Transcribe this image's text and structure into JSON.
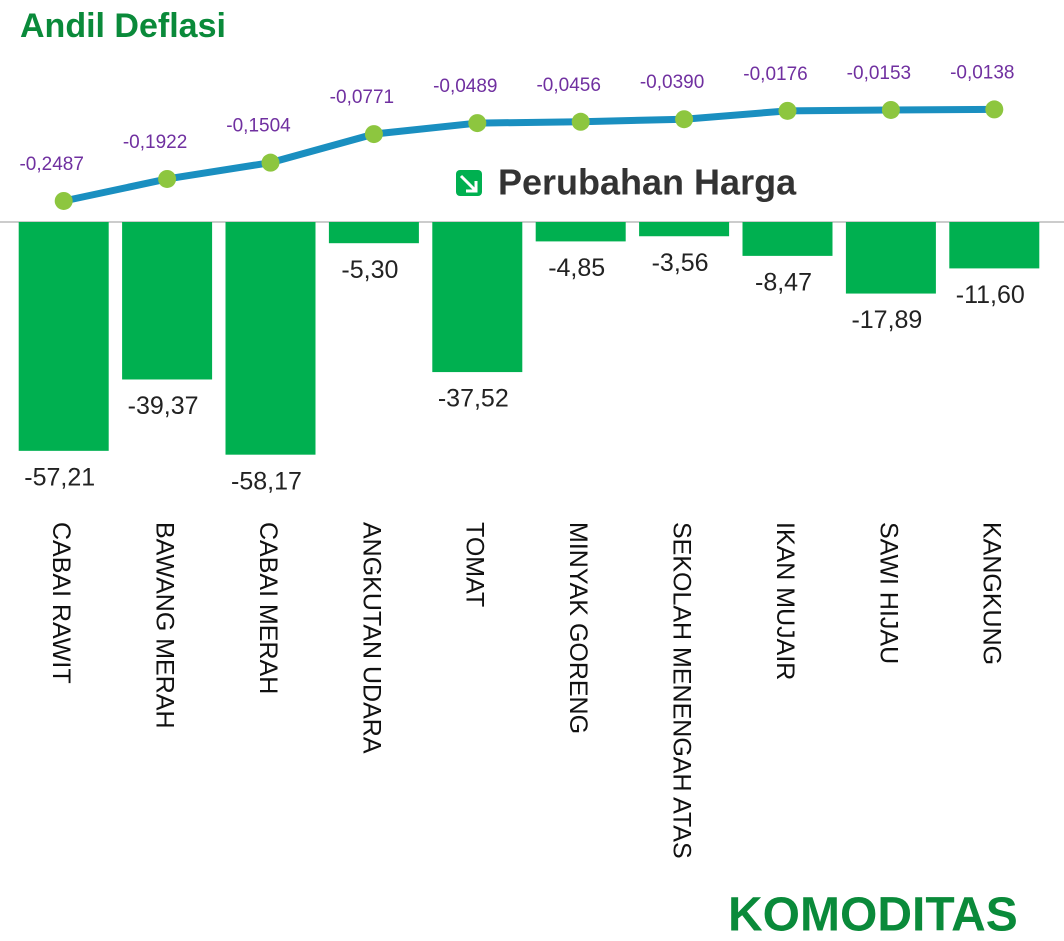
{
  "chart_data": {
    "type": "bar",
    "title": "Andil Deflasi",
    "subtitle": "Perubahan Harga",
    "annotation": "KOMODITAS",
    "categories": [
      "CABAI RAWIT",
      "BAWANG MERAH",
      "CABAI MERAH",
      "ANGKUTAN UDARA",
      "TOMAT",
      "MINYAK GORENG",
      "SEKOLAH MENENGAH ATAS",
      "IKAN MUJAIR",
      "SAWI HIJAU",
      "KANGKUNG"
    ],
    "series": [
      {
        "name": "Perubahan Harga",
        "type": "bar",
        "color": "#00b050",
        "values": [
          -57.21,
          -39.37,
          -58.17,
          -5.3,
          -37.52,
          -4.85,
          -3.56,
          -8.47,
          -17.89,
          -11.6
        ],
        "value_labels": [
          "-57,21",
          "-39,37",
          "-58,17",
          "-5,30",
          "-37,52",
          "-4,85",
          "-3,56",
          "-8,47",
          "-17,89",
          "-11,60"
        ]
      },
      {
        "name": "Andil Deflasi",
        "type": "line",
        "axis": "y2",
        "color": "#1a8fc0",
        "marker_color": "#8dc63f",
        "values": [
          -0.2487,
          -0.1922,
          -0.1504,
          -0.0771,
          -0.0489,
          -0.0456,
          -0.039,
          -0.0176,
          -0.0153,
          -0.0138
        ],
        "value_labels": [
          "-0,2487",
          "-0,1922",
          "-0,1504",
          "-0,0771",
          "-0,0489",
          "-0,0456",
          "-0,0390",
          "-0,0176",
          "-0,0153",
          "-0,0138"
        ]
      }
    ],
    "ylim": [
      -60,
      0
    ],
    "y2lim": [
      -0.3,
      0
    ]
  }
}
